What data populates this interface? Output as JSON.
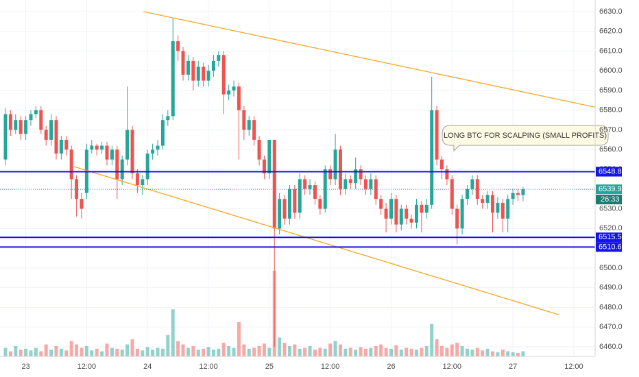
{
  "chart_data": {
    "type": "candlestick",
    "xlim": [
      -1.08,
      116.2
    ],
    "xticks": [
      {
        "value": 4,
        "label": "23"
      },
      {
        "value": 16,
        "label": "12:00"
      },
      {
        "value": 28,
        "label": "24"
      },
      {
        "value": 40,
        "label": "12:00"
      },
      {
        "value": 52,
        "label": "25"
      },
      {
        "value": 64,
        "label": "12:00"
      },
      {
        "value": 76,
        "label": "26"
      },
      {
        "value": 88,
        "label": "12:00"
      },
      {
        "value": 100,
        "label": "27"
      },
      {
        "value": 112,
        "label": "12:00"
      }
    ],
    "ylim": [
      6455.1,
      6635.9
    ],
    "yticks": [
      {
        "value": 6460,
        "label": "6460.0"
      },
      {
        "value": 6470,
        "label": "6470.0"
      },
      {
        "value": 6480,
        "label": "6480.0"
      },
      {
        "value": 6490,
        "label": "6490.0"
      },
      {
        "value": 6500,
        "label": "6500.0"
      },
      {
        "value": 6510,
        "label": "6510.0"
      },
      {
        "value": 6520,
        "label": "6520.0"
      },
      {
        "value": 6530,
        "label": "6530.0"
      },
      {
        "value": 6540,
        "label": "6540.0"
      },
      {
        "value": 6550,
        "label": "6550.0"
      },
      {
        "value": 6560,
        "label": "6560.0"
      },
      {
        "value": 6570,
        "label": "6570.0"
      },
      {
        "value": 6580,
        "label": "6580.0"
      },
      {
        "value": 6590,
        "label": "6590.0"
      },
      {
        "value": 6600,
        "label": "6600.0"
      },
      {
        "value": 6610,
        "label": "6610.0"
      },
      {
        "value": 6620,
        "label": "6620.0"
      },
      {
        "value": 6630,
        "label": "6630.0"
      }
    ],
    "grid": true,
    "up_color": "#26a69a",
    "down_color": "#ef5350",
    "open": [
      6555,
      6578,
      6570,
      6575,
      6568,
      6575,
      6578,
      6580,
      6570,
      6565,
      6575,
      6558,
      6565,
      6560,
      6545,
      6535,
      6538,
      6560,
      6562,
      6560,
      6562,
      6555,
      6560,
      6545,
      6555,
      6570,
      6548,
      6542,
      6545,
      6558,
      6560,
      6562,
      6575,
      6577,
      6615,
      6610,
      6598,
      6605,
      6595,
      6602,
      6595,
      6600,
      6605,
      6608,
      6588,
      6590,
      6592,
      6580,
      6570,
      6575,
      6565,
      6555,
      6548,
      6565,
      6520,
      6535,
      6525,
      6540,
      6528,
      6545,
      6540,
      6542,
      6535,
      6530,
      6550,
      6545,
      6560,
      6540,
      6545,
      6543,
      6550,
      6545,
      6540,
      6545,
      6535,
      6530,
      6525,
      6535,
      6522,
      6530,
      6525,
      6523,
      6532,
      6528,
      6532,
      6580,
      6555,
      6550,
      6545,
      6530,
      6520,
      6535,
      6540,
      6545,
      6535,
      6533,
      6537,
      6528,
      6533,
      6525,
      6535,
      6538,
      6537
    ],
    "high": [
      6581,
      6580,
      6578,
      6577,
      6577,
      6580,
      6582,
      6582,
      6572,
      6578,
      6577,
      6567,
      6567,
      6562,
      6547,
      6538,
      6563,
      6565,
      6563,
      6564,
      6564,
      6562,
      6562,
      6557,
      6592,
      6572,
      6550,
      6547,
      6560,
      6563,
      6565,
      6578,
      6580,
      6627,
      6618,
      6612,
      6608,
      6607,
      6605,
      6604,
      6603,
      6608,
      6610,
      6610,
      6593,
      6595,
      6594,
      6582,
      6577,
      6577,
      6567,
      6557,
      6565,
      6565,
      6538,
      6537,
      6542,
      6542,
      6548,
      6547,
      6545,
      6544,
      6537,
      6552,
      6552,
      6568,
      6562,
      6548,
      6547,
      6556,
      6552,
      6547,
      6548,
      6547,
      6537,
      6533,
      6538,
      6537,
      6532,
      6532,
      6527,
      6535,
      6534,
      6535,
      6597,
      6582,
      6557,
      6552,
      6547,
      6532,
      6537,
      6542,
      6547,
      6547,
      6537,
      6539,
      6539,
      6536,
      6535,
      6537,
      6540,
      6540,
      6541
    ],
    "low": [
      6552,
      6567,
      6568,
      6565,
      6565,
      6572,
      6576,
      6568,
      6562,
      6562,
      6555,
      6555,
      6557,
      6535,
      6526,
      6525,
      6535,
      6558,
      6557,
      6558,
      6552,
      6552,
      6535,
      6542,
      6552,
      6545,
      6538,
      6537,
      6542,
      6555,
      6557,
      6560,
      6572,
      6575,
      6605,
      6595,
      6595,
      6590,
      6592,
      6592,
      6592,
      6597,
      6602,
      6578,
      6585,
      6587,
      6555,
      6565,
      6567,
      6562,
      6552,
      6545,
      6545,
      6460,
      6517,
      6522,
      6522,
      6525,
      6525,
      6537,
      6537,
      6532,
      6527,
      6528,
      6542,
      6542,
      6537,
      6537,
      6540,
      6540,
      6542,
      6537,
      6537,
      6532,
      6527,
      6518,
      6522,
      6518,
      6519,
      6522,
      6520,
      6520,
      6518,
      6525,
      6530,
      6552,
      6545,
      6542,
      6527,
      6512,
      6517,
      6532,
      6537,
      6532,
      6530,
      6530,
      6518,
      6525,
      6518,
      6518,
      6532,
      6534,
      6534
    ],
    "close": [
      6578,
      6570,
      6575,
      6568,
      6575,
      6578,
      6580,
      6570,
      6565,
      6575,
      6558,
      6565,
      6560,
      6545,
      6535,
      6530,
      6560,
      6562,
      6560,
      6562,
      6555,
      6560,
      6545,
      6555,
      6570,
      6548,
      6542,
      6545,
      6558,
      6560,
      6562,
      6575,
      6577,
      6615,
      6610,
      6598,
      6605,
      6595,
      6602,
      6595,
      6600,
      6605,
      6608,
      6588,
      6590,
      6592,
      6580,
      6570,
      6575,
      6565,
      6555,
      6548,
      6565,
      6520,
      6535,
      6525,
      6540,
      6528,
      6545,
      6540,
      6542,
      6535,
      6530,
      6550,
      6545,
      6560,
      6540,
      6545,
      6543,
      6550,
      6545,
      6540,
      6545,
      6535,
      6530,
      6525,
      6535,
      6522,
      6530,
      6525,
      6523,
      6532,
      6528,
      6532,
      6580,
      6555,
      6550,
      6545,
      6530,
      6520,
      6535,
      6540,
      6545,
      6535,
      6533,
      6537,
      6528,
      6533,
      6525,
      6535,
      6538,
      6537,
      6539.9
    ],
    "volume": [
      10,
      6,
      12,
      8,
      9,
      7,
      10,
      6,
      14,
      8,
      12,
      9,
      7,
      18,
      14,
      10,
      12,
      7,
      9,
      6,
      15,
      10,
      9,
      8,
      14,
      20,
      9,
      7,
      11,
      8,
      10,
      9,
      25,
      55,
      18,
      14,
      10,
      12,
      8,
      9,
      11,
      8,
      9,
      16,
      12,
      10,
      40,
      14,
      9,
      10,
      12,
      15,
      10,
      100,
      22,
      16,
      12,
      14,
      9,
      10,
      12,
      8,
      10,
      9,
      15,
      18,
      14,
      9,
      10,
      8,
      11,
      9,
      10,
      12,
      14,
      10,
      9,
      13,
      8,
      10,
      9,
      8,
      10,
      12,
      38,
      20,
      12,
      10,
      14,
      16,
      12,
      9,
      8,
      10,
      7,
      9,
      6,
      5,
      8,
      6,
      5,
      4,
      6
    ],
    "levels": {
      "values": [
        6548.8,
        6515.5,
        6510.6
      ],
      "color": "#1414e6"
    },
    "last_price": 6539.9,
    "countdown": "26:33",
    "annotation": "LONG BTC FOR SCALPING (SMALL PROFITS)",
    "trend_color": "#f5a623",
    "trendlines": [
      {
        "x": [
          27.2,
          124.9
        ],
        "y": [
          6630,
          6576.8
        ]
      },
      {
        "x": [
          13.5,
          109
        ],
        "y": [
          6551.4,
          6476.3
        ]
      }
    ]
  }
}
